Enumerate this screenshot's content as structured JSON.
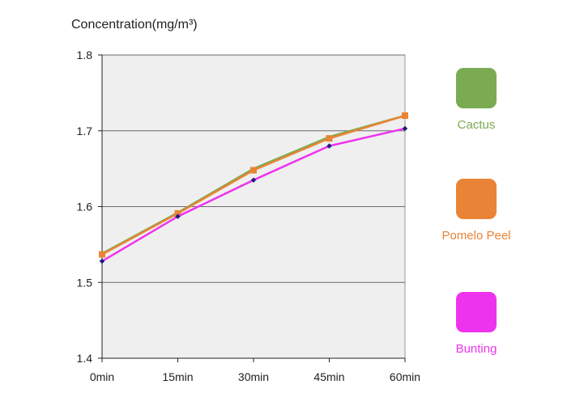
{
  "chart_data": {
    "type": "line",
    "title": "",
    "ylabel": "Concentration(mg/m³)",
    "xlabel": "",
    "categories": [
      "0min",
      "15min",
      "30min",
      "45min",
      "60min"
    ],
    "ylim": [
      1.4,
      1.8
    ],
    "yticks": [
      "1.4",
      "1.5",
      "1.6",
      "1.7",
      "1.8"
    ],
    "grid": true,
    "legend_position": "right",
    "series": [
      {
        "name": "Cactus",
        "color": "#7aab52",
        "marker": "none",
        "values": [
          1.538,
          1.592,
          1.65,
          1.692,
          1.72
        ]
      },
      {
        "name": "Pomelo Peel",
        "color": "#e98436",
        "marker": "square",
        "values": [
          1.537,
          1.591,
          1.648,
          1.69,
          1.72
        ]
      },
      {
        "name": "Bunting",
        "color": "#ee33ee",
        "marker": "diamond",
        "markerColor": "#1a1a7a",
        "values": [
          1.528,
          1.587,
          1.635,
          1.68,
          1.703
        ]
      }
    ]
  }
}
